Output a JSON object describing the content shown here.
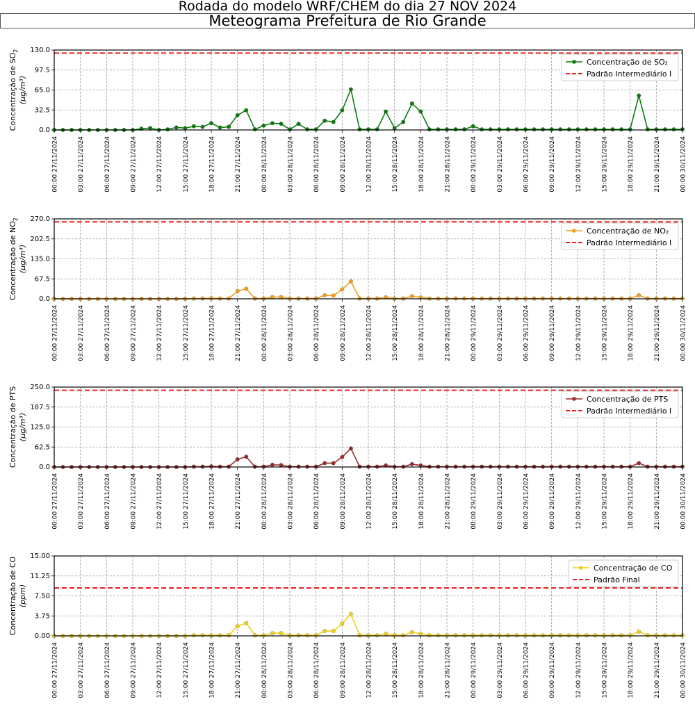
{
  "header": {
    "title": "Rodada do modelo WRF/CHEM do dia 27 NOV 2024",
    "subtitle": "Meteograma Prefeitura de Rio Grande"
  },
  "x_tick_labels": [
    "00:00 27/11/2024",
    "03:00 27/11/2024",
    "06:00 27/11/2024",
    "09:00 27/11/2024",
    "12:00 27/11/2024",
    "15:00 27/11/2024",
    "18:00 27/11/2024",
    "21:00 27/11/2024",
    "00:00 28/11/2024",
    "03:00 28/11/2024",
    "06:00 28/11/2024",
    "09:00 28/11/2024",
    "12:00 28/11/2024",
    "15:00 28/11/2024",
    "18:00 28/11/2024",
    "21:00 28/11/2024",
    "00:00 29/11/2024",
    "03:00 29/11/2024",
    "06:00 29/11/2024",
    "09:00 29/11/2024",
    "12:00 29/11/2024",
    "15:00 29/11/2024",
    "18:00 29/11/2024",
    "21:00 29/11/2024",
    "00:00 30/11/2024"
  ],
  "chart_data": [
    {
      "type": "line",
      "x_hours": [
        0,
        1,
        2,
        3,
        4,
        5,
        6,
        7,
        8,
        9,
        10,
        11,
        12,
        13,
        14,
        15,
        16,
        17,
        18,
        19,
        20,
        21,
        22,
        23,
        24,
        25,
        26,
        27,
        28,
        29,
        30,
        31,
        32,
        33,
        34,
        35,
        36,
        37,
        38,
        39,
        40,
        41,
        42,
        43,
        44,
        45,
        46,
        47,
        48,
        49,
        50,
        51,
        52,
        53,
        54,
        55,
        56,
        57,
        58,
        59,
        60,
        61,
        62,
        63,
        64,
        65,
        66,
        67,
        68,
        69,
        70,
        71,
        72
      ],
      "ylabel_main": "Concentração de SO",
      "ylabel_sub": "2",
      "ylabel_unit": "(μg/m³)",
      "ylim": [
        0,
        130
      ],
      "yticks": [
        "0.0",
        "32.5",
        "65.0",
        "97.5",
        "130.0"
      ],
      "color": "#0b7a0b",
      "series": [
        {
          "name": "Concentração de SO₂",
          "values": [
            0,
            0,
            0,
            0,
            0,
            0,
            0,
            0,
            0,
            0,
            2,
            3,
            0,
            1,
            4,
            3,
            6,
            5,
            11,
            4,
            5,
            24,
            32,
            1,
            7,
            11,
            10,
            1,
            10,
            1,
            1,
            15,
            13,
            32,
            66,
            1,
            1,
            1,
            30,
            3,
            13,
            43,
            30,
            1,
            1,
            1,
            1,
            1,
            6,
            1,
            1,
            1,
            1,
            1,
            1,
            1,
            1,
            1,
            1,
            1,
            1,
            1,
            1,
            1,
            1,
            1,
            1,
            56,
            1,
            1,
            1,
            1,
            1
          ]
        }
      ],
      "reference": {
        "name": "Padrão Intermediário I",
        "value": 125,
        "color": "#ee1c1c"
      }
    },
    {
      "type": "line",
      "x_hours": [
        0,
        1,
        2,
        3,
        4,
        5,
        6,
        7,
        8,
        9,
        10,
        11,
        12,
        13,
        14,
        15,
        16,
        17,
        18,
        19,
        20,
        21,
        22,
        23,
        24,
        25,
        26,
        27,
        28,
        29,
        30,
        31,
        32,
        33,
        34,
        35,
        36,
        37,
        38,
        39,
        40,
        41,
        42,
        43,
        44,
        45,
        46,
        47,
        48,
        49,
        50,
        51,
        52,
        53,
        54,
        55,
        56,
        57,
        58,
        59,
        60,
        61,
        62,
        63,
        64,
        65,
        66,
        67,
        68,
        69,
        70,
        71,
        72
      ],
      "ylabel_main": "Concentração de NO",
      "ylabel_sub": "2",
      "ylabel_unit": "(μg/m³)",
      "ylim": [
        0,
        270
      ],
      "yticks": [
        "0.0",
        "67.5",
        "135.0",
        "202.5",
        "270.0"
      ],
      "color": "#f0a01e",
      "series": [
        {
          "name": "Concentração de NO₂",
          "values": [
            0,
            0,
            0,
            0,
            0,
            0,
            0,
            0,
            0,
            0,
            0,
            0,
            0,
            0,
            0,
            0,
            1,
            1,
            2,
            1,
            1,
            26,
            34,
            1,
            1,
            6,
            6,
            1,
            1,
            1,
            1,
            12,
            11,
            32,
            59,
            1,
            1,
            1,
            5,
            1,
            1,
            9,
            5,
            1,
            1,
            1,
            1,
            1,
            1,
            1,
            1,
            1,
            1,
            1,
            1,
            1,
            1,
            1,
            1,
            1,
            1,
            1,
            1,
            1,
            1,
            1,
            1,
            12,
            1,
            1,
            1,
            1,
            1
          ]
        }
      ],
      "reference": {
        "name": "Padrão Intermediário I",
        "value": 260,
        "color": "#ee1c1c"
      }
    },
    {
      "type": "line",
      "x_hours": [
        0,
        1,
        2,
        3,
        4,
        5,
        6,
        7,
        8,
        9,
        10,
        11,
        12,
        13,
        14,
        15,
        16,
        17,
        18,
        19,
        20,
        21,
        22,
        23,
        24,
        25,
        26,
        27,
        28,
        29,
        30,
        31,
        32,
        33,
        34,
        35,
        36,
        37,
        38,
        39,
        40,
        41,
        42,
        43,
        44,
        45,
        46,
        47,
        48,
        49,
        50,
        51,
        52,
        53,
        54,
        55,
        56,
        57,
        58,
        59,
        60,
        61,
        62,
        63,
        64,
        65,
        66,
        67,
        68,
        69,
        70,
        71,
        72
      ],
      "ylabel_main": "Concentração de PTS",
      "ylabel_sub": "",
      "ylabel_unit": "(μg/m³)",
      "ylim": [
        0,
        250
      ],
      "yticks": [
        "0.0",
        "62.5",
        "125.0",
        "187.5",
        "250.0"
      ],
      "color": "#952c2c",
      "series": [
        {
          "name": "Concentração de PTS",
          "values": [
            0,
            0,
            0,
            0,
            0,
            0,
            0,
            0,
            0,
            0,
            0,
            0,
            0,
            0,
            0,
            0,
            1,
            1,
            2,
            1,
            1,
            24,
            32,
            1,
            1,
            7,
            6,
            1,
            1,
            1,
            1,
            12,
            12,
            31,
            58,
            1,
            1,
            1,
            5,
            1,
            1,
            9,
            5,
            1,
            1,
            1,
            1,
            1,
            1,
            1,
            1,
            1,
            1,
            1,
            1,
            1,
            1,
            1,
            1,
            1,
            1,
            1,
            1,
            1,
            1,
            1,
            1,
            12,
            1,
            1,
            1,
            1,
            1
          ]
        }
      ],
      "reference": {
        "name": "Padrão Intermediário I",
        "value": 240,
        "color": "#ee1c1c"
      }
    },
    {
      "type": "line",
      "x_hours": [
        0,
        1,
        2,
        3,
        4,
        5,
        6,
        7,
        8,
        9,
        10,
        11,
        12,
        13,
        14,
        15,
        16,
        17,
        18,
        19,
        20,
        21,
        22,
        23,
        24,
        25,
        26,
        27,
        28,
        29,
        30,
        31,
        32,
        33,
        34,
        35,
        36,
        37,
        38,
        39,
        40,
        41,
        42,
        43,
        44,
        45,
        46,
        47,
        48,
        49,
        50,
        51,
        52,
        53,
        54,
        55,
        56,
        57,
        58,
        59,
        60,
        61,
        62,
        63,
        64,
        65,
        66,
        67,
        68,
        69,
        70,
        71,
        72
      ],
      "ylabel_main": "Concentração de CO",
      "ylabel_sub": "",
      "ylabel_unit": "(ppm)",
      "ylim": [
        0,
        15
      ],
      "yticks": [
        "0.00",
        "3.75",
        "7.50",
        "11.25",
        "15.00"
      ],
      "color": "#f2cf19",
      "series": [
        {
          "name": "Concentração de CO",
          "values": [
            0,
            0,
            0,
            0,
            0,
            0,
            0,
            0,
            0,
            0,
            0,
            0,
            0,
            0,
            0,
            0,
            0.1,
            0.1,
            0.1,
            0.1,
            0.1,
            1.8,
            2.4,
            0.1,
            0.1,
            0.5,
            0.5,
            0.1,
            0.1,
            0.1,
            0.1,
            0.9,
            0.9,
            2.3,
            4.1,
            0.1,
            0.1,
            0.1,
            0.4,
            0.1,
            0.1,
            0.7,
            0.4,
            0.1,
            0.1,
            0.1,
            0.1,
            0.1,
            0.1,
            0.1,
            0.1,
            0.1,
            0.1,
            0.1,
            0.1,
            0.1,
            0.1,
            0.1,
            0.1,
            0.1,
            0.1,
            0.1,
            0.1,
            0.1,
            0.1,
            0.1,
            0.1,
            0.8,
            0.1,
            0.1,
            0.1,
            0.1,
            0.1
          ]
        }
      ],
      "reference": {
        "name": "Padrão Final",
        "value": 9,
        "color": "#ee1c1c"
      }
    }
  ]
}
